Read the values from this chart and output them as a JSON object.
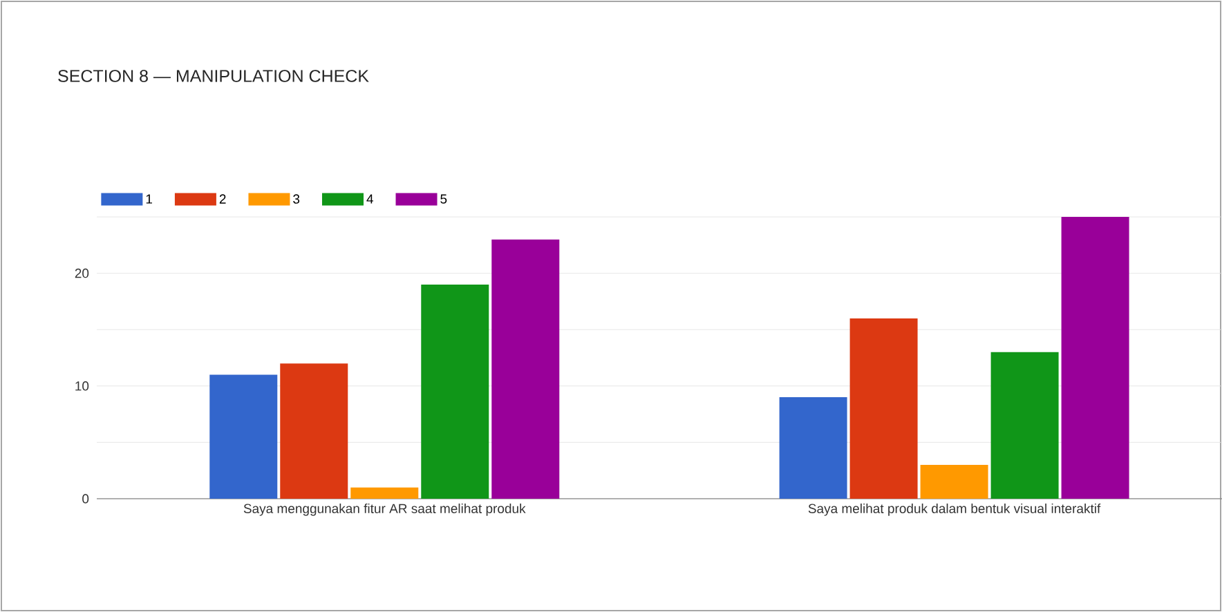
{
  "chart_data": {
    "type": "bar",
    "title": "SECTION 8 — MANIPULATION CHECK",
    "categories": [
      "Saya menggunakan fitur AR saat melihat produk",
      "Saya melihat produk dalam bentuk visual interaktif"
    ],
    "series": [
      {
        "name": "1",
        "color": "#3366cc",
        "values": [
          11,
          9
        ]
      },
      {
        "name": "2",
        "color": "#dc3912",
        "values": [
          12,
          16
        ]
      },
      {
        "name": "3",
        "color": "#ff9900",
        "values": [
          1,
          3
        ]
      },
      {
        "name": "4",
        "color": "#109618",
        "values": [
          19,
          13
        ]
      },
      {
        "name": "5",
        "color": "#990099",
        "values": [
          23,
          25
        ]
      }
    ],
    "ylim": [
      0,
      25
    ],
    "yticks": [
      0,
      {
        "value": 5,
        "label": null
      },
      10,
      {
        "value": 15,
        "label": null
      },
      20,
      {
        "value": 25,
        "label": null
      }
    ],
    "grid": "y",
    "legend": "top left"
  }
}
